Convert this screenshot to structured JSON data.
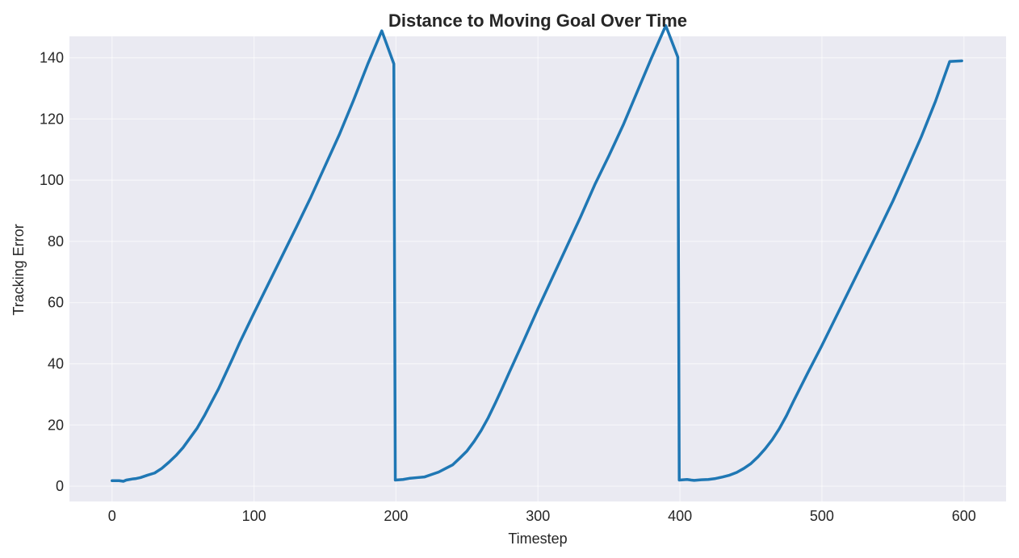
{
  "chart_data": {
    "type": "line",
    "title": "Distance to Moving Goal Over Time",
    "xlabel": "Timestep",
    "ylabel": "Tracking Error",
    "xlim": [
      -30,
      629.7
    ],
    "ylim": [
      -5,
      147
    ],
    "xticks": [
      0,
      100,
      200,
      300,
      400,
      500,
      600
    ],
    "yticks": [
      0,
      20,
      40,
      60,
      80,
      100,
      120,
      140
    ],
    "grid": true,
    "colors": {
      "plot_background": "#eaeaf2",
      "grid": "#ffffff",
      "line": "#1f77b4"
    },
    "series": [
      {
        "x": [
          0,
          5,
          8,
          10,
          15,
          17,
          20,
          25,
          30,
          35,
          40,
          45,
          50,
          55,
          60,
          65,
          70,
          75,
          80,
          85,
          90,
          95,
          100,
          110,
          120,
          130,
          140,
          150,
          160,
          170,
          180,
          190,
          198.5,
          199.5,
          205,
          210,
          215,
          220,
          225,
          230,
          235,
          240,
          245,
          250,
          255,
          260,
          265,
          270,
          275,
          280,
          290,
          300,
          310,
          320,
          330,
          340,
          350,
          360,
          370,
          380,
          390,
          398.5,
          399.5,
          405,
          408,
          410,
          415,
          420,
          425,
          430,
          435,
          440,
          445,
          450,
          455,
          460,
          465,
          470,
          475,
          480,
          490,
          500,
          510,
          520,
          530,
          540,
          550,
          560,
          570,
          580,
          590,
          598.5
        ],
        "y": [
          1.8,
          1.8,
          1.6,
          2.0,
          2.4,
          2.5,
          2.8,
          3.6,
          4.3,
          5.8,
          7.8,
          10.0,
          12.6,
          15.8,
          19.0,
          23.0,
          27.4,
          31.8,
          36.8,
          41.8,
          47.0,
          51.8,
          56.6,
          66.0,
          75.4,
          84.8,
          94.4,
          104.6,
          114.8,
          126.0,
          137.8,
          148.8,
          138.0,
          2.0,
          2.2,
          2.6,
          2.8,
          3.0,
          3.8,
          4.6,
          5.8,
          7.0,
          9.2,
          11.5,
          14.6,
          18.2,
          22.4,
          27.2,
          32.2,
          37.4,
          47.6,
          58.0,
          68.0,
          78.0,
          88.0,
          98.5,
          108.0,
          118.0,
          129.0,
          140.0,
          150.5,
          140.2,
          2.0,
          2.2,
          2.0,
          1.9,
          2.1,
          2.2,
          2.5,
          3.0,
          3.6,
          4.5,
          5.8,
          7.4,
          9.6,
          12.2,
          15.2,
          18.8,
          23.0,
          27.8,
          37.0,
          46.0,
          55.4,
          64.8,
          74.2,
          83.6,
          93.2,
          103.6,
          114.2,
          125.8,
          138.8,
          139.0
        ]
      }
    ]
  }
}
